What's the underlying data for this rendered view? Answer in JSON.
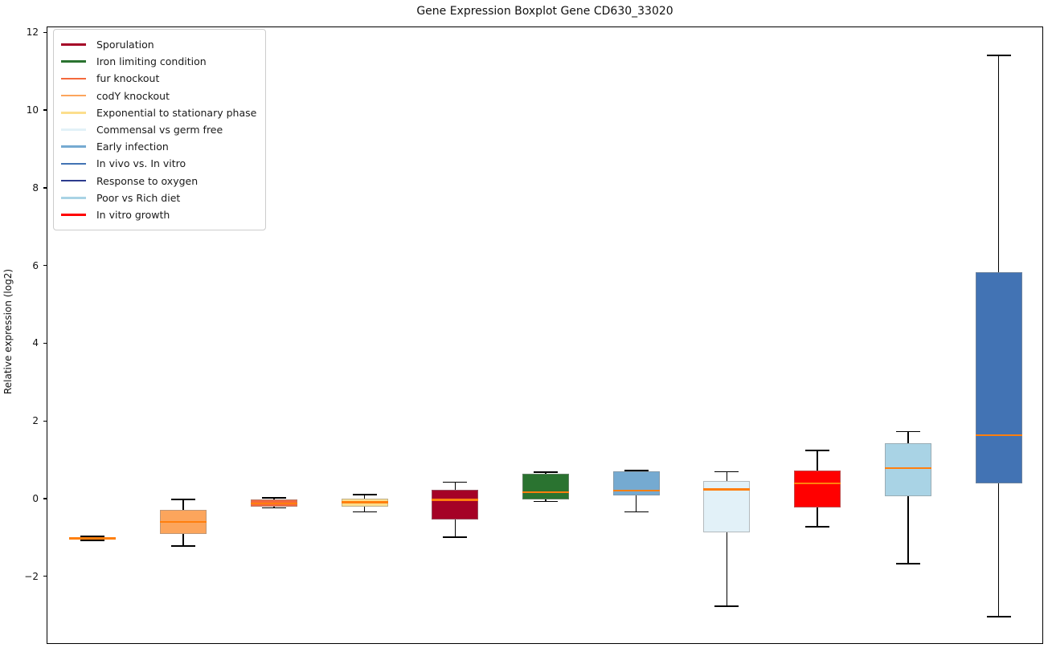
{
  "chart_data": {
    "type": "boxplot",
    "title": "Gene Expression Boxplot Gene CD630_33020",
    "ylabel": "Relative expression (log2)",
    "xlabel": "",
    "ylim": [
      -3.74,
      12.15
    ],
    "yticks": [
      12,
      10,
      8,
      6,
      4,
      2,
      0,
      -2
    ],
    "x_tick_labels": [],
    "grid": false,
    "legend_position": "upper left",
    "median_color": "#FF7F0E",
    "series": [
      {
        "name": "Response to oxygen",
        "color": "#2C3B8D",
        "whislo": -1.05,
        "q1": -1.03,
        "med": -1.0,
        "q3": -0.97,
        "whishi": -0.95
      },
      {
        "name": "codY knockout",
        "color": "#FCA55C",
        "whislo": -1.2,
        "q1": -0.89,
        "med": -0.58,
        "q3": -0.27,
        "whishi": 0.0
      },
      {
        "name": "fur knockout",
        "color": "#F4693C",
        "whislo": -0.22,
        "q1": -0.18,
        "med": -0.1,
        "q3": 0.01,
        "whishi": 0.04
      },
      {
        "name": "Exponential to stationary phase",
        "color": "#FCDE8D",
        "whislo": -0.32,
        "q1": -0.19,
        "med": -0.07,
        "q3": 0.02,
        "whishi": 0.12
      },
      {
        "name": "Sporulation",
        "color": "#A50226",
        "whislo": -0.97,
        "q1": -0.52,
        "med": -0.01,
        "q3": 0.24,
        "whishi": 0.45
      },
      {
        "name": "Iron limiting condition",
        "color": "#2A7330",
        "whislo": -0.05,
        "q1": -0.01,
        "med": 0.18,
        "q3": 0.66,
        "whishi": 0.7
      },
      {
        "name": "Early infection",
        "color": "#75AAD1",
        "whislo": -0.32,
        "q1": 0.1,
        "med": 0.23,
        "q3": 0.72,
        "whishi": 0.74
      },
      {
        "name": "Commensal vs germ free",
        "color": "#E2F1F8",
        "whislo": -2.75,
        "q1": -0.85,
        "med": 0.26,
        "q3": 0.47,
        "whishi": 0.71
      },
      {
        "name": "In vitro growth",
        "color": "#FF0000",
        "whislo": -0.7,
        "q1": -0.21,
        "med": 0.41,
        "q3": 0.74,
        "whishi": 1.26
      },
      {
        "name": "Poor vs Rich diet",
        "color": "#A9D3E5",
        "whislo": -1.65,
        "q1": 0.09,
        "med": 0.81,
        "q3": 1.45,
        "whishi": 1.74
      },
      {
        "name": "In vivo vs. In vitro",
        "color": "#4273B4",
        "whislo": -3.02,
        "q1": 0.41,
        "med": 1.65,
        "q3": 5.84,
        "whishi": 11.43
      }
    ],
    "legend": [
      {
        "label": "Sporulation",
        "color": "#A50226"
      },
      {
        "label": "Iron limiting condition",
        "color": "#2A7330"
      },
      {
        "label": "fur knockout",
        "color": "#F4693C"
      },
      {
        "label": "codY knockout",
        "color": "#FCA55C"
      },
      {
        "label": "Exponential to stationary phase",
        "color": "#FCDE8D"
      },
      {
        "label": "Commensal vs germ free",
        "color": "#E2F1F8"
      },
      {
        "label": "Early infection",
        "color": "#75AAD1"
      },
      {
        "label": "In vivo vs. In vitro",
        "color": "#4273B4"
      },
      {
        "label": "Response to oxygen",
        "color": "#2C3B8D"
      },
      {
        "label": "Poor vs Rich diet",
        "color": "#A9D3E5"
      },
      {
        "label": "In vitro growth",
        "color": "#FF0000"
      }
    ]
  }
}
